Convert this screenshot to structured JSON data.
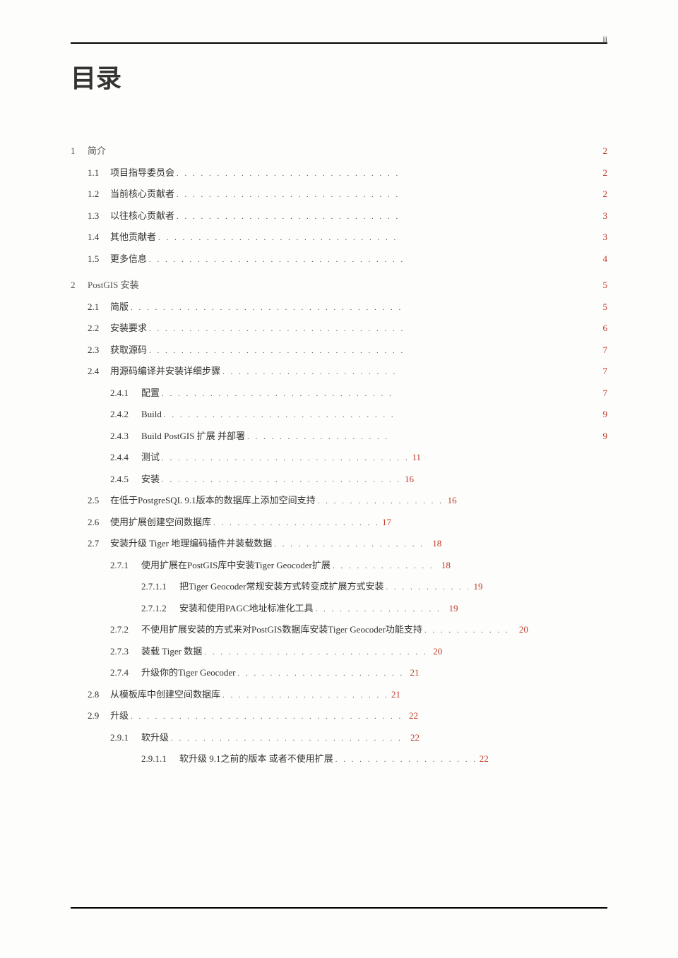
{
  "page_number": "ii",
  "title": "目录",
  "link_color": "#c0392b",
  "text_color": "#333333",
  "rule_color": "#000000",
  "background_color": "#fdfdfb",
  "font_body_size": 13,
  "font_title_size": 36,
  "chapters": [
    {
      "num": "1",
      "title": "简介",
      "page": "2",
      "sections": [
        {
          "num": "1.1",
          "title": "项目指导委员会",
          "page": "2",
          "dots_width": 320
        },
        {
          "num": "1.2",
          "title": "当前核心贡献者",
          "page": "2",
          "dots_width": 320
        },
        {
          "num": "1.3",
          "title": "以往核心贡献者",
          "page": "3",
          "dots_width": 320
        },
        {
          "num": "1.4",
          "title": "其他贡献者",
          "page": "3",
          "dots_width": 348
        },
        {
          "num": "1.5",
          "title": "更多信息",
          "page": "4",
          "dots_width": 362
        }
      ]
    },
    {
      "num": "2",
      "title": "PostGIS 安装",
      "page": "5",
      "sections": [
        {
          "num": "2.1",
          "title": "简版",
          "page": "5",
          "dots_width": 390
        },
        {
          "num": "2.2",
          "title": "安装要求",
          "page": "6",
          "dots_width": 362
        },
        {
          "num": "2.3",
          "title": "获取源码",
          "page": "7",
          "dots_width": 362
        },
        {
          "num": "2.4",
          "title": "用源码编译并安装详细步骤",
          "page": "7",
          "dots_width": 250,
          "subs": [
            {
              "num": "2.4.1",
              "title": "配置",
              "page": "7",
              "dots_width": 330
            },
            {
              "num": "2.4.2",
              "title": "Build",
              "page": "9",
              "dots_width": 334
            },
            {
              "num": "2.4.3",
              "title": "Build PostGIS 扩展 并部署",
              "page": "9",
              "dots_width": 205
            },
            {
              "num": "2.4.4",
              "title": "测试",
              "page": "11",
              "dots_width": 350,
              "page_inline": true
            },
            {
              "num": "2.4.5",
              "title": "安装",
              "page": "16",
              "dots_width": 340,
              "page_inline": true
            }
          ]
        },
        {
          "num": "2.5",
          "title": "在低于PostgreSQL 9.1版本的数据库上添加空间支持",
          "page": "16",
          "dots_width": 180,
          "page_inline": true
        },
        {
          "num": "2.6",
          "title": "使用扩展创建空间数据库",
          "page": "17",
          "dots_width": 235,
          "page_inline": true
        },
        {
          "num": "2.7",
          "title": "安装升级 Tiger 地理编码插件并装载数据",
          "page": "18",
          "dots_width": 220,
          "page_inline": true,
          "subs": [
            {
              "num": "2.7.1",
              "title": "使用扩展在PostGIS库中安装Tiger Geocoder扩展",
              "page": "18",
              "dots_width": 150,
              "page_inline": true,
              "subsubs": [
                {
                  "num": "2.7.1.1",
                  "title": "把Tiger Geocoder常规安装方式转变成扩展方式安装",
                  "page": "19",
                  "dots_width": 120,
                  "page_inline": true
                },
                {
                  "num": "2.7.1.2",
                  "title": "安装和使用PAGC地址标准化工具",
                  "page": "19",
                  "dots_width": 185,
                  "page_inline": true
                }
              ]
            },
            {
              "num": "2.7.2",
              "title": "不使用扩展安装的方式来对PostGIS数据库安装Tiger Geocoder功能支持",
              "page": "20",
              "dots_width": 130,
              "page_inline": true
            },
            {
              "num": "2.7.3",
              "title": "装载 Tiger 数据",
              "page": "20",
              "dots_width": 320,
              "page_inline": true
            },
            {
              "num": "2.7.4",
              "title": "升级你的Tiger Geocoder",
              "page": "21",
              "dots_width": 240,
              "page_inline": true
            }
          ]
        },
        {
          "num": "2.8",
          "title": "从模板库中创建空间数据库",
          "page": "21",
          "dots_width": 235,
          "page_inline": true
        },
        {
          "num": "2.9",
          "title": "升级",
          "page": "22",
          "dots_width": 390,
          "page_inline": true,
          "subs": [
            {
              "num": "2.9.1",
              "title": "软升级",
              "page": "22",
              "dots_width": 335,
              "page_inline": true,
              "subsubs": [
                {
                  "num": "2.9.1.1",
                  "title": "软升级 9.1之前的版本 或者不使用扩展",
                  "page": "22",
                  "dots_width": 200,
                  "page_inline": true
                }
              ]
            }
          ]
        }
      ]
    }
  ]
}
